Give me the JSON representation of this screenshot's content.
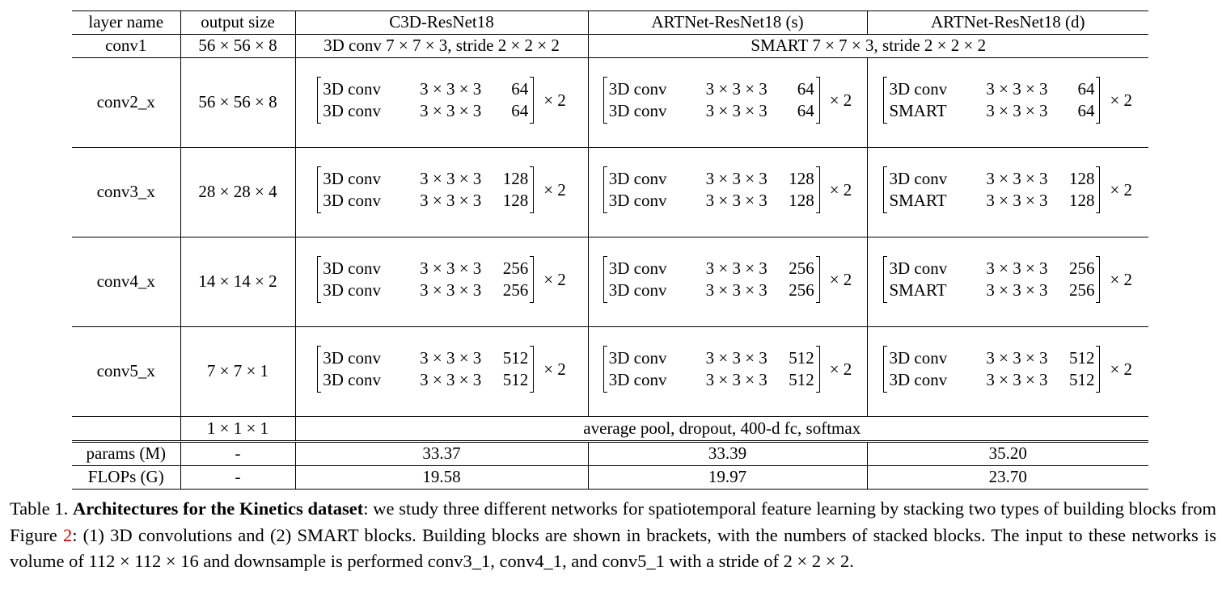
{
  "table": {
    "header": [
      "layer name",
      "output size",
      "C3D-ResNet18",
      "ARTNet-ResNet18 (s)",
      "ARTNet-ResNet18 (d)"
    ],
    "conv1": {
      "name": "conv1",
      "size": "56 × 56 × 8",
      "c3d": "3D conv 7 × 7 × 3, stride 2 × 2 × 2",
      "artnet": "SMART 7 × 7 × 3, stride 2 × 2 × 2"
    },
    "blocks": [
      {
        "name": "conv2_x",
        "size": "56 × 56 × 8",
        "c3d": {
          "row1": {
            "op": "3D conv",
            "k": "3 × 3 × 3",
            "ch": "64"
          },
          "row2": {
            "op": "3D conv",
            "k": "3 × 3 × 3",
            "ch": "64"
          },
          "mult": "× 2"
        },
        "s": {
          "row1": {
            "op": "3D conv",
            "k": "3 × 3 × 3",
            "ch": "64"
          },
          "row2": {
            "op": "3D conv",
            "k": "3 × 3 × 3",
            "ch": "64"
          },
          "mult": "× 2"
        },
        "d": {
          "row1": {
            "op": "3D conv",
            "k": "3 × 3 × 3",
            "ch": "64"
          },
          "row2": {
            "op": "SMART",
            "k": "3 × 3 × 3",
            "ch": "64"
          },
          "mult": "× 2"
        }
      },
      {
        "name": "conv3_x",
        "size": "28 × 28 × 4",
        "c3d": {
          "row1": {
            "op": "3D conv",
            "k": "3 × 3 × 3",
            "ch": "128"
          },
          "row2": {
            "op": "3D conv",
            "k": "3 × 3 × 3",
            "ch": "128"
          },
          "mult": "× 2"
        },
        "s": {
          "row1": {
            "op": "3D conv",
            "k": "3 × 3 × 3",
            "ch": "128"
          },
          "row2": {
            "op": "3D conv",
            "k": "3 × 3 × 3",
            "ch": "128"
          },
          "mult": "× 2"
        },
        "d": {
          "row1": {
            "op": "3D conv",
            "k": "3 × 3 × 3",
            "ch": "128"
          },
          "row2": {
            "op": "SMART",
            "k": "3 × 3 × 3",
            "ch": "128"
          },
          "mult": "× 2"
        }
      },
      {
        "name": "conv4_x",
        "size": "14 × 14 × 2",
        "c3d": {
          "row1": {
            "op": "3D conv",
            "k": "3 × 3 × 3",
            "ch": "256"
          },
          "row2": {
            "op": "3D conv",
            "k": "3 × 3 × 3",
            "ch": "256"
          },
          "mult": "× 2"
        },
        "s": {
          "row1": {
            "op": "3D conv",
            "k": "3 × 3 × 3",
            "ch": "256"
          },
          "row2": {
            "op": "3D conv",
            "k": "3 × 3 × 3",
            "ch": "256"
          },
          "mult": "× 2"
        },
        "d": {
          "row1": {
            "op": "3D conv",
            "k": "3 × 3 × 3",
            "ch": "256"
          },
          "row2": {
            "op": "SMART",
            "k": "3 × 3 × 3",
            "ch": "256"
          },
          "mult": "× 2"
        }
      },
      {
        "name": "conv5_x",
        "size": "7 × 7 × 1",
        "c3d": {
          "row1": {
            "op": "3D conv",
            "k": "3 × 3 × 3",
            "ch": "512"
          },
          "row2": {
            "op": "3D conv",
            "k": "3 × 3 × 3",
            "ch": "512"
          },
          "mult": "× 2"
        },
        "s": {
          "row1": {
            "op": "3D conv",
            "k": "3 × 3 × 3",
            "ch": "512"
          },
          "row2": {
            "op": "3D conv",
            "k": "3 × 3 × 3",
            "ch": "512"
          },
          "mult": "× 2"
        },
        "d": {
          "row1": {
            "op": "3D conv",
            "k": "3 × 3 × 3",
            "ch": "512"
          },
          "row2": {
            "op": "3D conv",
            "k": "3 × 3 × 3",
            "ch": "512"
          },
          "mult": "× 2"
        }
      }
    ],
    "pool": {
      "name": "",
      "size": "1 × 1 × 1",
      "text": "average pool, dropout, 400-d fc, softmax"
    },
    "params": {
      "label": "params (M)",
      "size": "-",
      "c3d": "33.37",
      "s": "33.39",
      "d": "35.20"
    },
    "flops": {
      "label": "FLOPs (G)",
      "size": "-",
      "c3d": "19.58",
      "s": "19.97",
      "d": "23.70"
    }
  },
  "caption": {
    "prefix": "Table 1. ",
    "bold": "Architectures for the Kinetics dataset",
    "part1": ": we study three different networks for spatiotemporal feature learning by stacking two types of building blocks from Figure ",
    "fig_ref": "2",
    "part2": ": (1) 3D convolutions and (2) SMART blocks. Building blocks are shown in brackets, with the numbers of stacked blocks. The input to these networks is volume of 112 × 112 × 16 and downsample is performed conv3_1, conv4_1, and conv5_1 with a stride of 2 × 2 × 2."
  },
  "colors": {
    "fig_ref": "#d00000"
  }
}
